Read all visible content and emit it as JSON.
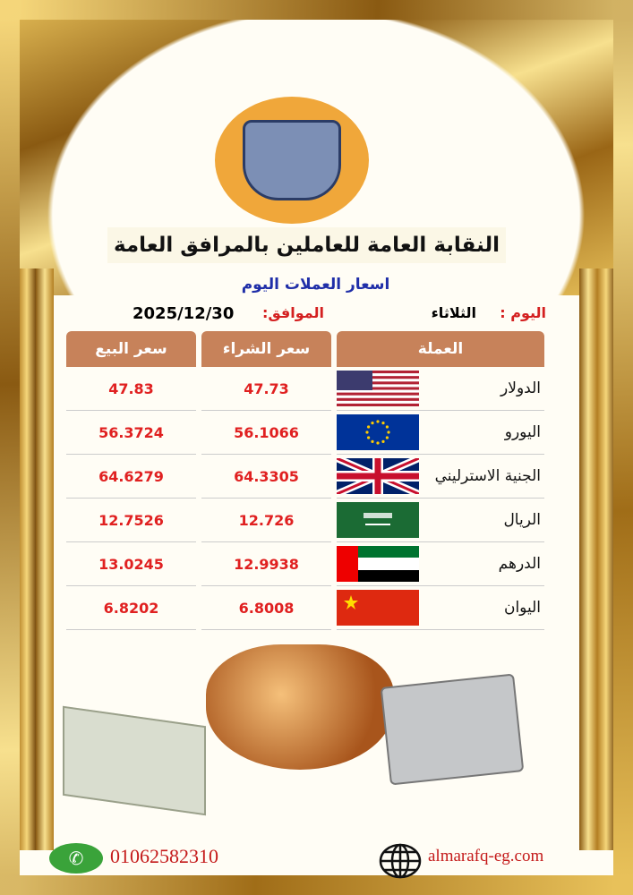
{
  "header": {
    "title": "النقابة العامة للعاملين بالمرافق العامة",
    "subtitle": "اسعار العملات اليوم"
  },
  "date_row": {
    "day_label": "اليوم :",
    "day_value": "الثلاثاء",
    "date_label": "الموافق:",
    "date_value": "2025/12/30"
  },
  "table": {
    "headers": {
      "currency": "العملة",
      "buy": "سعر الشراء",
      "sell": "سعر البيع"
    },
    "rows": [
      {
        "currency": "الدولار",
        "flag": "usa-flag",
        "buy": "47.73",
        "sell": "47.83"
      },
      {
        "currency": "اليورو",
        "flag": "eu-flag",
        "buy": "56.1066",
        "sell": "56.3724"
      },
      {
        "currency": "الجنية الاسترليني",
        "flag": "uk-flag",
        "buy": "64.3305",
        "sell": "64.6279"
      },
      {
        "currency": "الريال",
        "flag": "saudi-flag",
        "buy": "12.726",
        "sell": "12.7526"
      },
      {
        "currency": "الدرهم",
        "flag": "uae-flag",
        "buy": "12.9938",
        "sell": "13.0245"
      },
      {
        "currency": "اليوان",
        "flag": "china-flag",
        "buy": "6.8008",
        "sell": "6.8202"
      }
    ]
  },
  "footer": {
    "phone": "01062582310",
    "website": "almarafq-eg.com"
  },
  "colors": {
    "header_bg": "#c7825a",
    "price": "#e02020",
    "subtitle": "#1f2ea8",
    "frame_gold": "#c8962a"
  }
}
